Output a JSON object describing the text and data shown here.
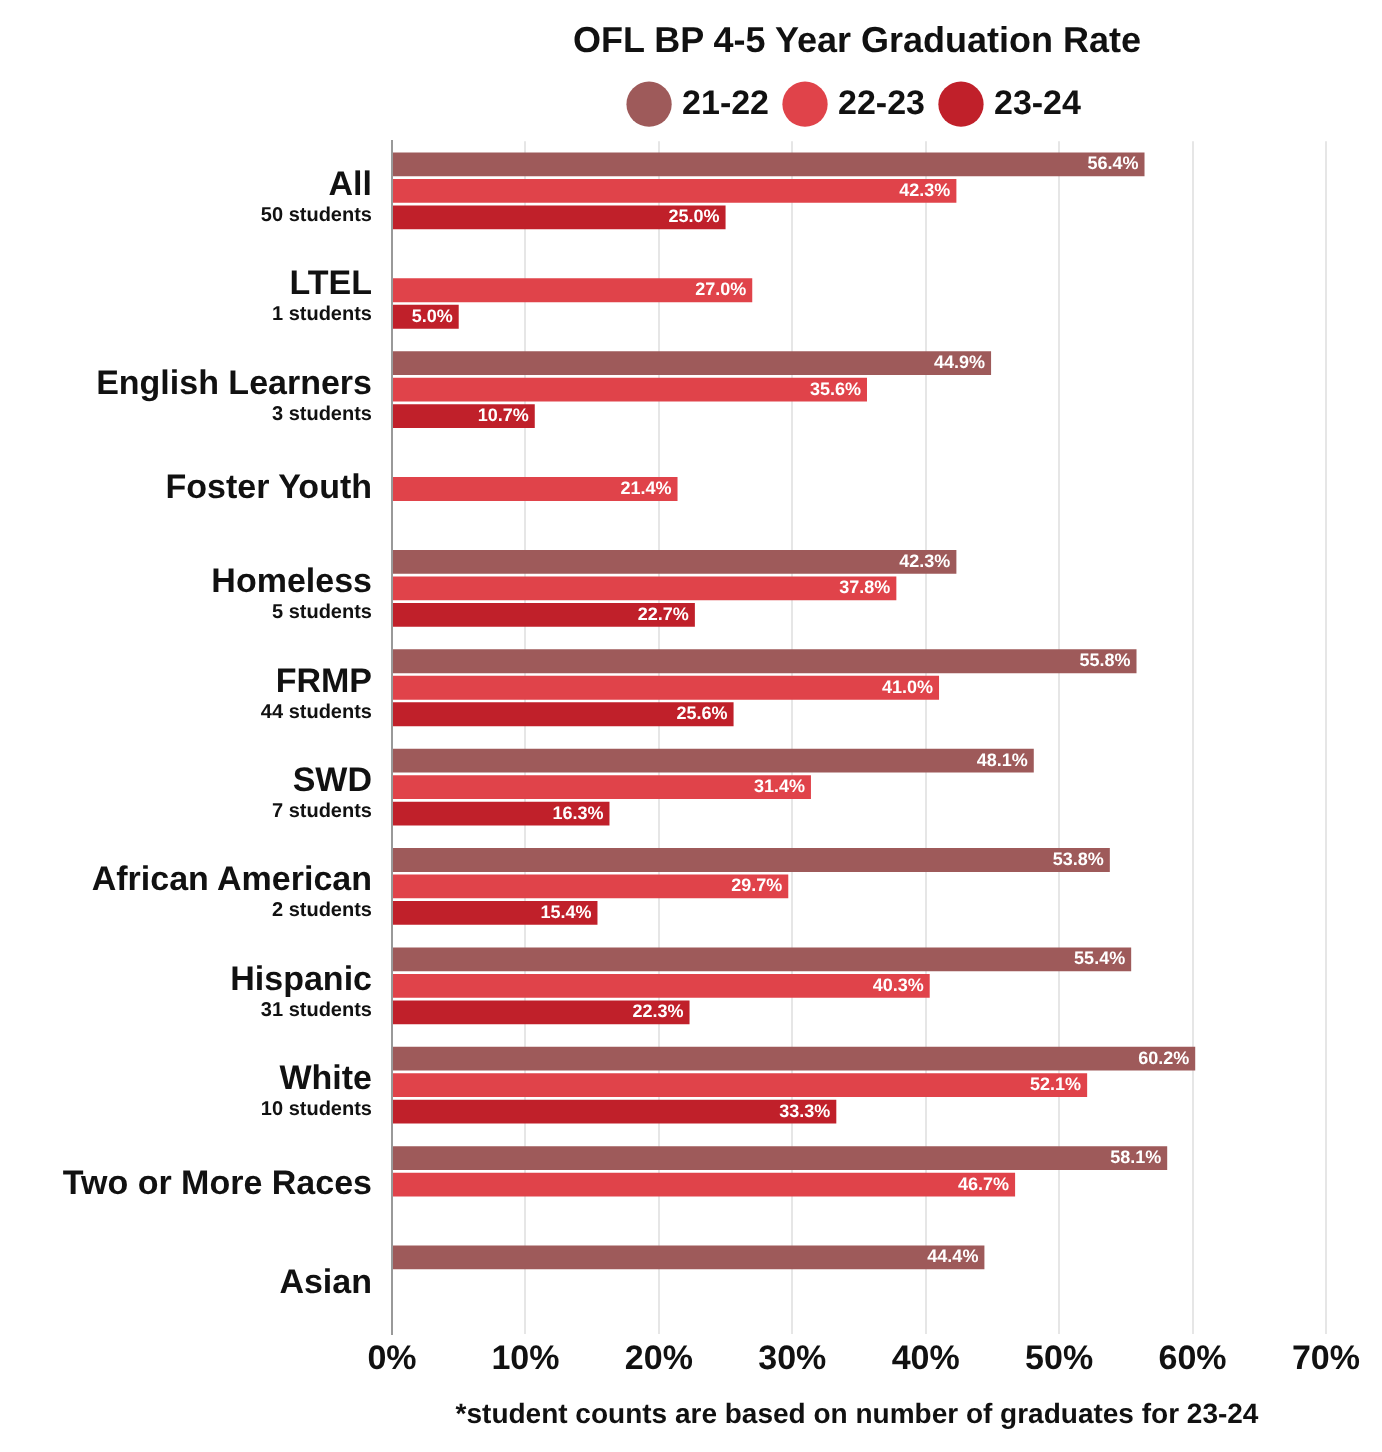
{
  "chart_data": {
    "type": "bar",
    "orientation": "horizontal",
    "title": "OFL BP 4-5 Year Graduation Rate",
    "categories": [
      "All\n50 students",
      "LTEL\n1 students",
      "English Learners\n3 students",
      "Foster Youth",
      "Homeless\n5 students",
      "FRMP\n44 students",
      "SWD\n7 students",
      "African American\n2 students",
      "Hispanic\n31 students",
      "White\n10 students",
      "Two or More Races",
      "Asian"
    ],
    "series": [
      {
        "name": "21-22",
        "color": "#9e5a5a",
        "values": [
          56.4,
          null,
          44.9,
          null,
          42.3,
          55.8,
          48.1,
          53.8,
          55.4,
          60.2,
          58.1,
          44.4
        ],
        "value_labels": [
          "56.4%",
          null,
          "44.9%",
          null,
          "42.3%",
          "55.8%",
          "48.1%",
          "53.8%",
          "55.4%",
          "60.2%",
          "58.1%",
          "44.4%"
        ]
      },
      {
        "name": "22-23",
        "color": "#e0434a",
        "values": [
          42.3,
          27.0,
          35.6,
          21.4,
          37.8,
          41.0,
          31.4,
          29.7,
          40.3,
          52.1,
          46.7,
          null
        ],
        "value_labels": [
          "42.3%",
          "27.0%",
          "35.6%",
          "21.4%",
          "37.8%",
          "41.0%",
          "31.4%",
          "29.7%",
          "40.3%",
          "52.1%",
          "46.7%",
          null
        ]
      },
      {
        "name": "23-24",
        "color": "#c0202a",
        "values": [
          25.0,
          5.0,
          10.7,
          null,
          22.7,
          25.6,
          16.3,
          15.4,
          22.3,
          33.3,
          null,
          null
        ],
        "value_labels": [
          "25.0%",
          "5.0%",
          "10.7%",
          null,
          "22.7%",
          "25.6%",
          "16.3%",
          "15.4%",
          "22.3%",
          "33.3%",
          null,
          null
        ]
      }
    ],
    "xlim": [
      0,
      70
    ],
    "xticks": [
      {
        "value": 0,
        "label": "0%"
      },
      {
        "value": 10,
        "label": "10%"
      },
      {
        "value": 20,
        "label": "20%"
      },
      {
        "value": 30,
        "label": "30%"
      },
      {
        "value": 40,
        "label": "40%"
      },
      {
        "value": 50,
        "label": "50%"
      },
      {
        "value": 60,
        "label": "60%"
      },
      {
        "value": 70,
        "label": "70%"
      }
    ],
    "grid": "x",
    "legend": "top",
    "marker": "circle",
    "annotations": [
      "*student counts are based on number of graduates for 23-24"
    ]
  }
}
